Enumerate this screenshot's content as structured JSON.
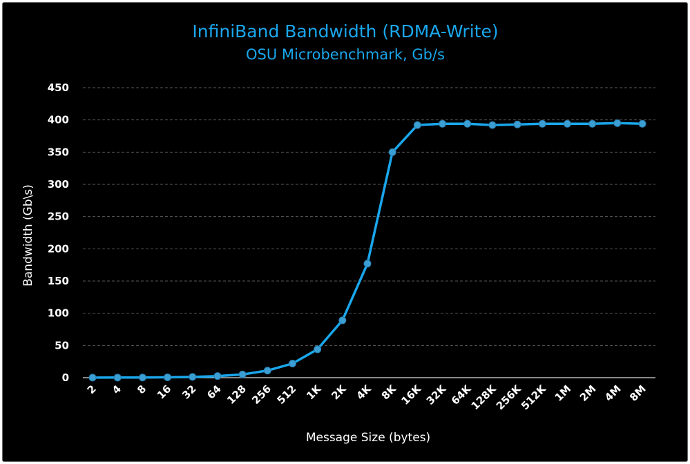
{
  "chart_data": {
    "type": "line",
    "title": "InfiniBand Bandwidth (RDMA-Write)",
    "subtitle": "OSU Microbenchmark, Gb/s",
    "xlabel": "Message Size (bytes)",
    "ylabel": "Bandwidth (Gb\\s)",
    "categories": [
      "2",
      "4",
      "8",
      "16",
      "32",
      "64",
      "128",
      "256",
      "512",
      "1K",
      "2K",
      "4K",
      "8K",
      "16K",
      "32K",
      "64K",
      "128K",
      "256K",
      "512K",
      "1M",
      "2M",
      "4M",
      "8M"
    ],
    "series": [
      {
        "values": [
          0.1,
          0.2,
          0.3,
          0.6,
          1.2,
          2.5,
          5,
          11,
          22,
          44,
          89,
          177,
          350,
          392,
          394,
          394,
          392,
          393,
          394,
          394,
          394,
          395,
          394
        ]
      }
    ],
    "ylim": [
      0,
      450
    ],
    "yticks": [
      0,
      50,
      100,
      150,
      200,
      250,
      300,
      350,
      400,
      450
    ],
    "grid": true,
    "line_color": "#1aa7ec",
    "marker_color": "#3b9fd4",
    "background": "#000000"
  }
}
